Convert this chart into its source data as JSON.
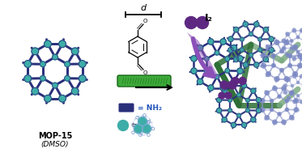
{
  "background_color": "#ffffff",
  "figsize": [
    3.73,
    1.89
  ],
  "dpi": 100,
  "text_mop15": "MOP-15",
  "text_dmso": "(DMSO)",
  "text_d": "d",
  "text_I2": "I₂",
  "cage_dark": "#2a2f7a",
  "cage_node": "#3dada8",
  "cage_light_edge": "#9099cc",
  "cage_light_node": "#7080c0",
  "linker_dark": "#2d6e35",
  "linker_light": "#7aaa80",
  "iodine_color": "#5e2882",
  "purple_arrow": "#8b50b8",
  "text_blue": "#2255bb"
}
